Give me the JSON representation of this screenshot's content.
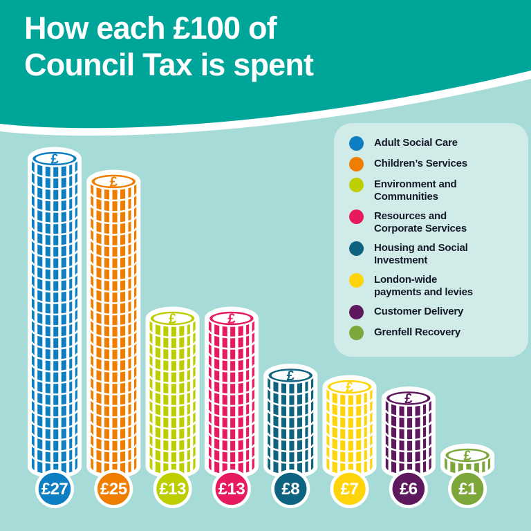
{
  "title": {
    "line1": "How each £100 of",
    "line2": "Council Tax is spent"
  },
  "colors": {
    "header_teal": "#00a59a",
    "page_bg": "#a7dbd7",
    "panel_bg": "#d1ebe8",
    "text_dark": "#14192a",
    "white": "#ffffff"
  },
  "chart_data": {
    "type": "bar",
    "title": "How each £100 of Council Tax is spent",
    "unit": "£ out of every £100 of Council Tax",
    "categories": [
      "Adult Social Care",
      "Children's Services",
      "Environment and Communities",
      "Resources and Corporate Services",
      "Housing and Social Investment",
      "London-wide payments and levies",
      "Customer Delivery",
      "Grenfell Recovery"
    ],
    "values": [
      27,
      25,
      13,
      13,
      8,
      7,
      6,
      1
    ],
    "badge_labels": [
      "£27",
      "£25",
      "£13",
      "£13",
      "£8",
      "£7",
      "£6",
      "£1"
    ],
    "colors": [
      "#0e7ec2",
      "#ef7d00",
      "#bccd00",
      "#e61a5c",
      "#0e6380",
      "#ffd40a",
      "#5e185d",
      "#7da73b"
    ],
    "coin_face_symbol": "£",
    "legend_position": "right",
    "ylim": [
      0,
      27
    ],
    "grid": false
  },
  "legend": {
    "items": [
      {
        "label": "Adult Social Care",
        "color": "#0e7ec2"
      },
      {
        "label": "Children’s Services",
        "color": "#ef7d00"
      },
      {
        "label": "Environment and\nCommunities",
        "color": "#bccd00"
      },
      {
        "label": "Resources and\nCorporate Services",
        "color": "#e61a5c"
      },
      {
        "label": "Housing and Social\nInvestment",
        "color": "#0e6380"
      },
      {
        "label": "London-wide\npayments and levies",
        "color": "#ffd40a"
      },
      {
        "label": "Customer Delivery",
        "color": "#5e185d"
      },
      {
        "label": "Grenfell Recovery",
        "color": "#7da73b"
      }
    ]
  }
}
